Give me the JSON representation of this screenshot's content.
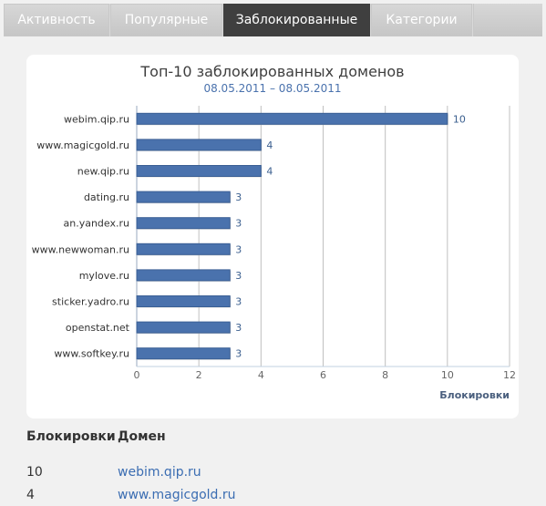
{
  "tabs": [
    {
      "label": "Активность",
      "active": false
    },
    {
      "label": "Популярные",
      "active": false
    },
    {
      "label": "Заблокированные",
      "active": true
    },
    {
      "label": "Категории",
      "active": false
    }
  ],
  "chart_data": {
    "type": "bar",
    "orientation": "horizontal",
    "title": "Топ-10 заблокированных доменов",
    "subtitle": "08.05.2011 – 08.05.2011",
    "categories": [
      "webim.qip.ru",
      "www.magicgold.ru",
      "new.qip.ru",
      "dating.ru",
      "an.yandex.ru",
      "www.newwoman.ru",
      "mylove.ru",
      "sticker.yadro.ru",
      "openstat.net",
      "www.softkey.ru"
    ],
    "values": [
      10,
      4,
      4,
      3,
      3,
      3,
      3,
      3,
      3,
      3
    ],
    "value_axis_label": "Блокировки",
    "xlim": [
      0,
      12
    ],
    "xticks": [
      0,
      2,
      4,
      6,
      8,
      10,
      12
    ],
    "grid": true,
    "bar_color": "#4a72ad",
    "label_color": "#3b5f8f"
  },
  "table": {
    "headers": {
      "count": "Блокировки",
      "domain": "Домен"
    },
    "rows": [
      {
        "count": "10",
        "domain": "webim.qip.ru"
      },
      {
        "count": "4",
        "domain": "www.magicgold.ru"
      }
    ]
  }
}
